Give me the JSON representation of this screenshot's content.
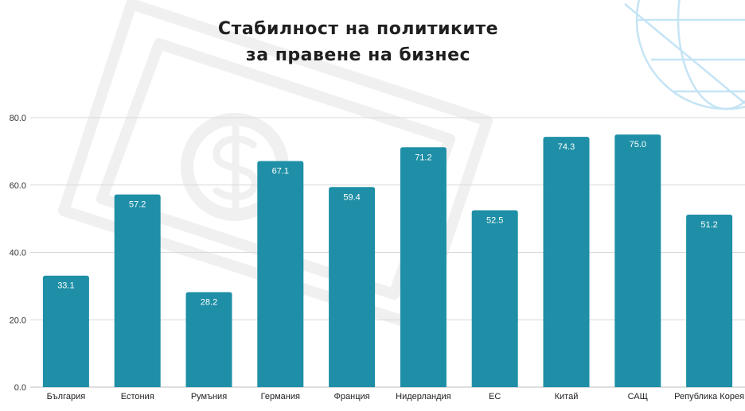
{
  "chart_data": {
    "type": "bar",
    "title_lines": [
      "Стабилност на политиките",
      "за правене на бизнес"
    ],
    "categories": [
      "България",
      "Естония",
      "Румъния",
      "Германия",
      "Франция",
      "Нидерландия",
      "ЕС",
      "Китай",
      "САЩ",
      "Република Корея"
    ],
    "values": [
      33.1,
      57.2,
      28.2,
      67.1,
      59.4,
      71.2,
      52.5,
      74.3,
      75.0,
      51.2
    ],
    "value_labels": [
      "33.1",
      "57.2",
      "28.2",
      "67.1",
      "59.4",
      "71.2",
      "52.5",
      "74.3",
      "75.0",
      "51.2"
    ],
    "ylim": [
      0,
      80
    ],
    "yticks": [
      "0.0",
      "20.0",
      "40.0",
      "60.0",
      "80.0"
    ],
    "grid": true,
    "legend": "none",
    "colors": {
      "bar": "#1e8fa6",
      "grid": "#d9d9d9",
      "watermark": "#f0f0f0",
      "globe": "#c5e4f5"
    }
  }
}
